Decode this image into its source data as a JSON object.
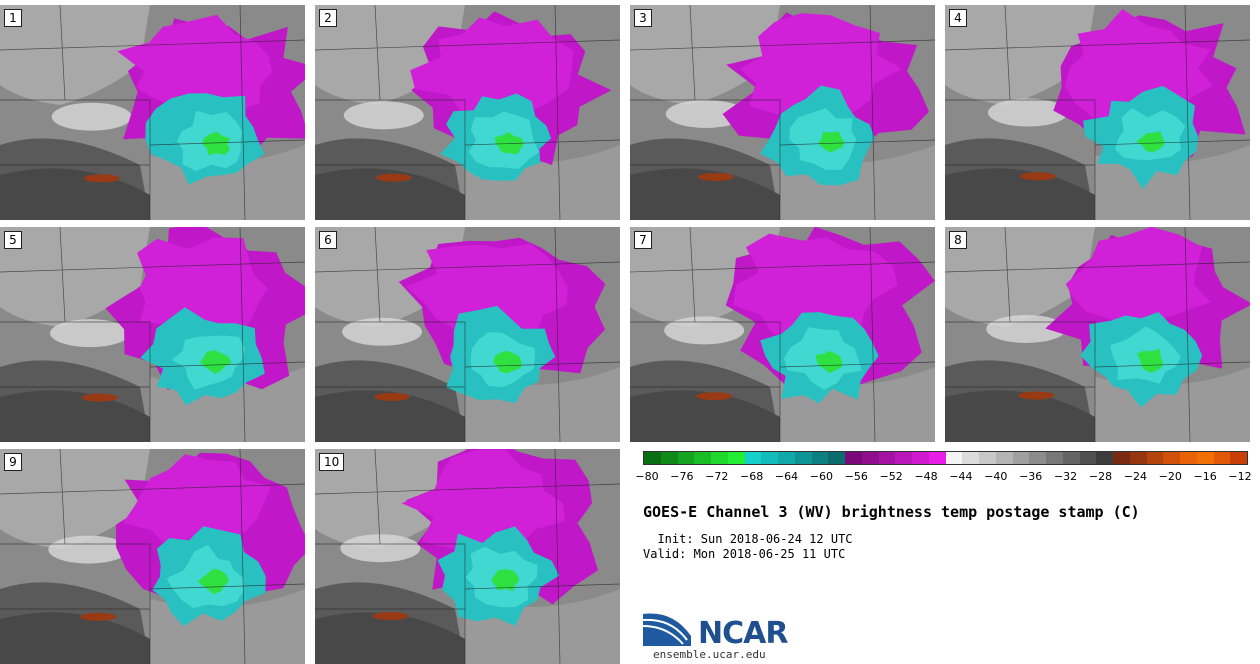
{
  "panels": [
    {
      "label": "1"
    },
    {
      "label": "2"
    },
    {
      "label": "3"
    },
    {
      "label": "4"
    },
    {
      "label": "5"
    },
    {
      "label": "6"
    },
    {
      "label": "7"
    },
    {
      "label": "8"
    },
    {
      "label": "9"
    },
    {
      "label": "10"
    }
  ],
  "colorbar": {
    "colors": [
      "#0a6e12",
      "#0f8a18",
      "#14a420",
      "#19be26",
      "#1ed82e",
      "#22ee36",
      "#14d0cc",
      "#12bcbc",
      "#10a8a8",
      "#0e9494",
      "#0c8080",
      "#0a6c6c",
      "#7a0a7a",
      "#8e0e8e",
      "#a412a4",
      "#ba16ba",
      "#d01ad0",
      "#e81ee8",
      "#f4f4f4",
      "#dcdcdc",
      "#c8c8c8",
      "#b4b4b4",
      "#a0a0a0",
      "#8c8c8c",
      "#787878",
      "#646464",
      "#505050",
      "#3c3c3c",
      "#7a2a10",
      "#96360e",
      "#b4440c",
      "#d0520a",
      "#ea6208",
      "#f07006",
      "#e05808",
      "#c84008"
    ],
    "ticks": [
      "−80",
      "−76",
      "−72",
      "−68",
      "−64",
      "−60",
      "−56",
      "−52",
      "−48",
      "−44",
      "−40",
      "−36",
      "−32",
      "−28",
      "−24",
      "−20",
      "−16",
      "−12"
    ]
  },
  "title": "GOES-E Channel 3 (WV) brightness temp postage stamp (C)",
  "init": "  Init: Sun 2018-06-24 12 UTC",
  "valid": "Valid: Mon 2018-06-25 11 UTC",
  "logo": {
    "text": "NCAR",
    "url": "ensemble.ucar.edu"
  }
}
